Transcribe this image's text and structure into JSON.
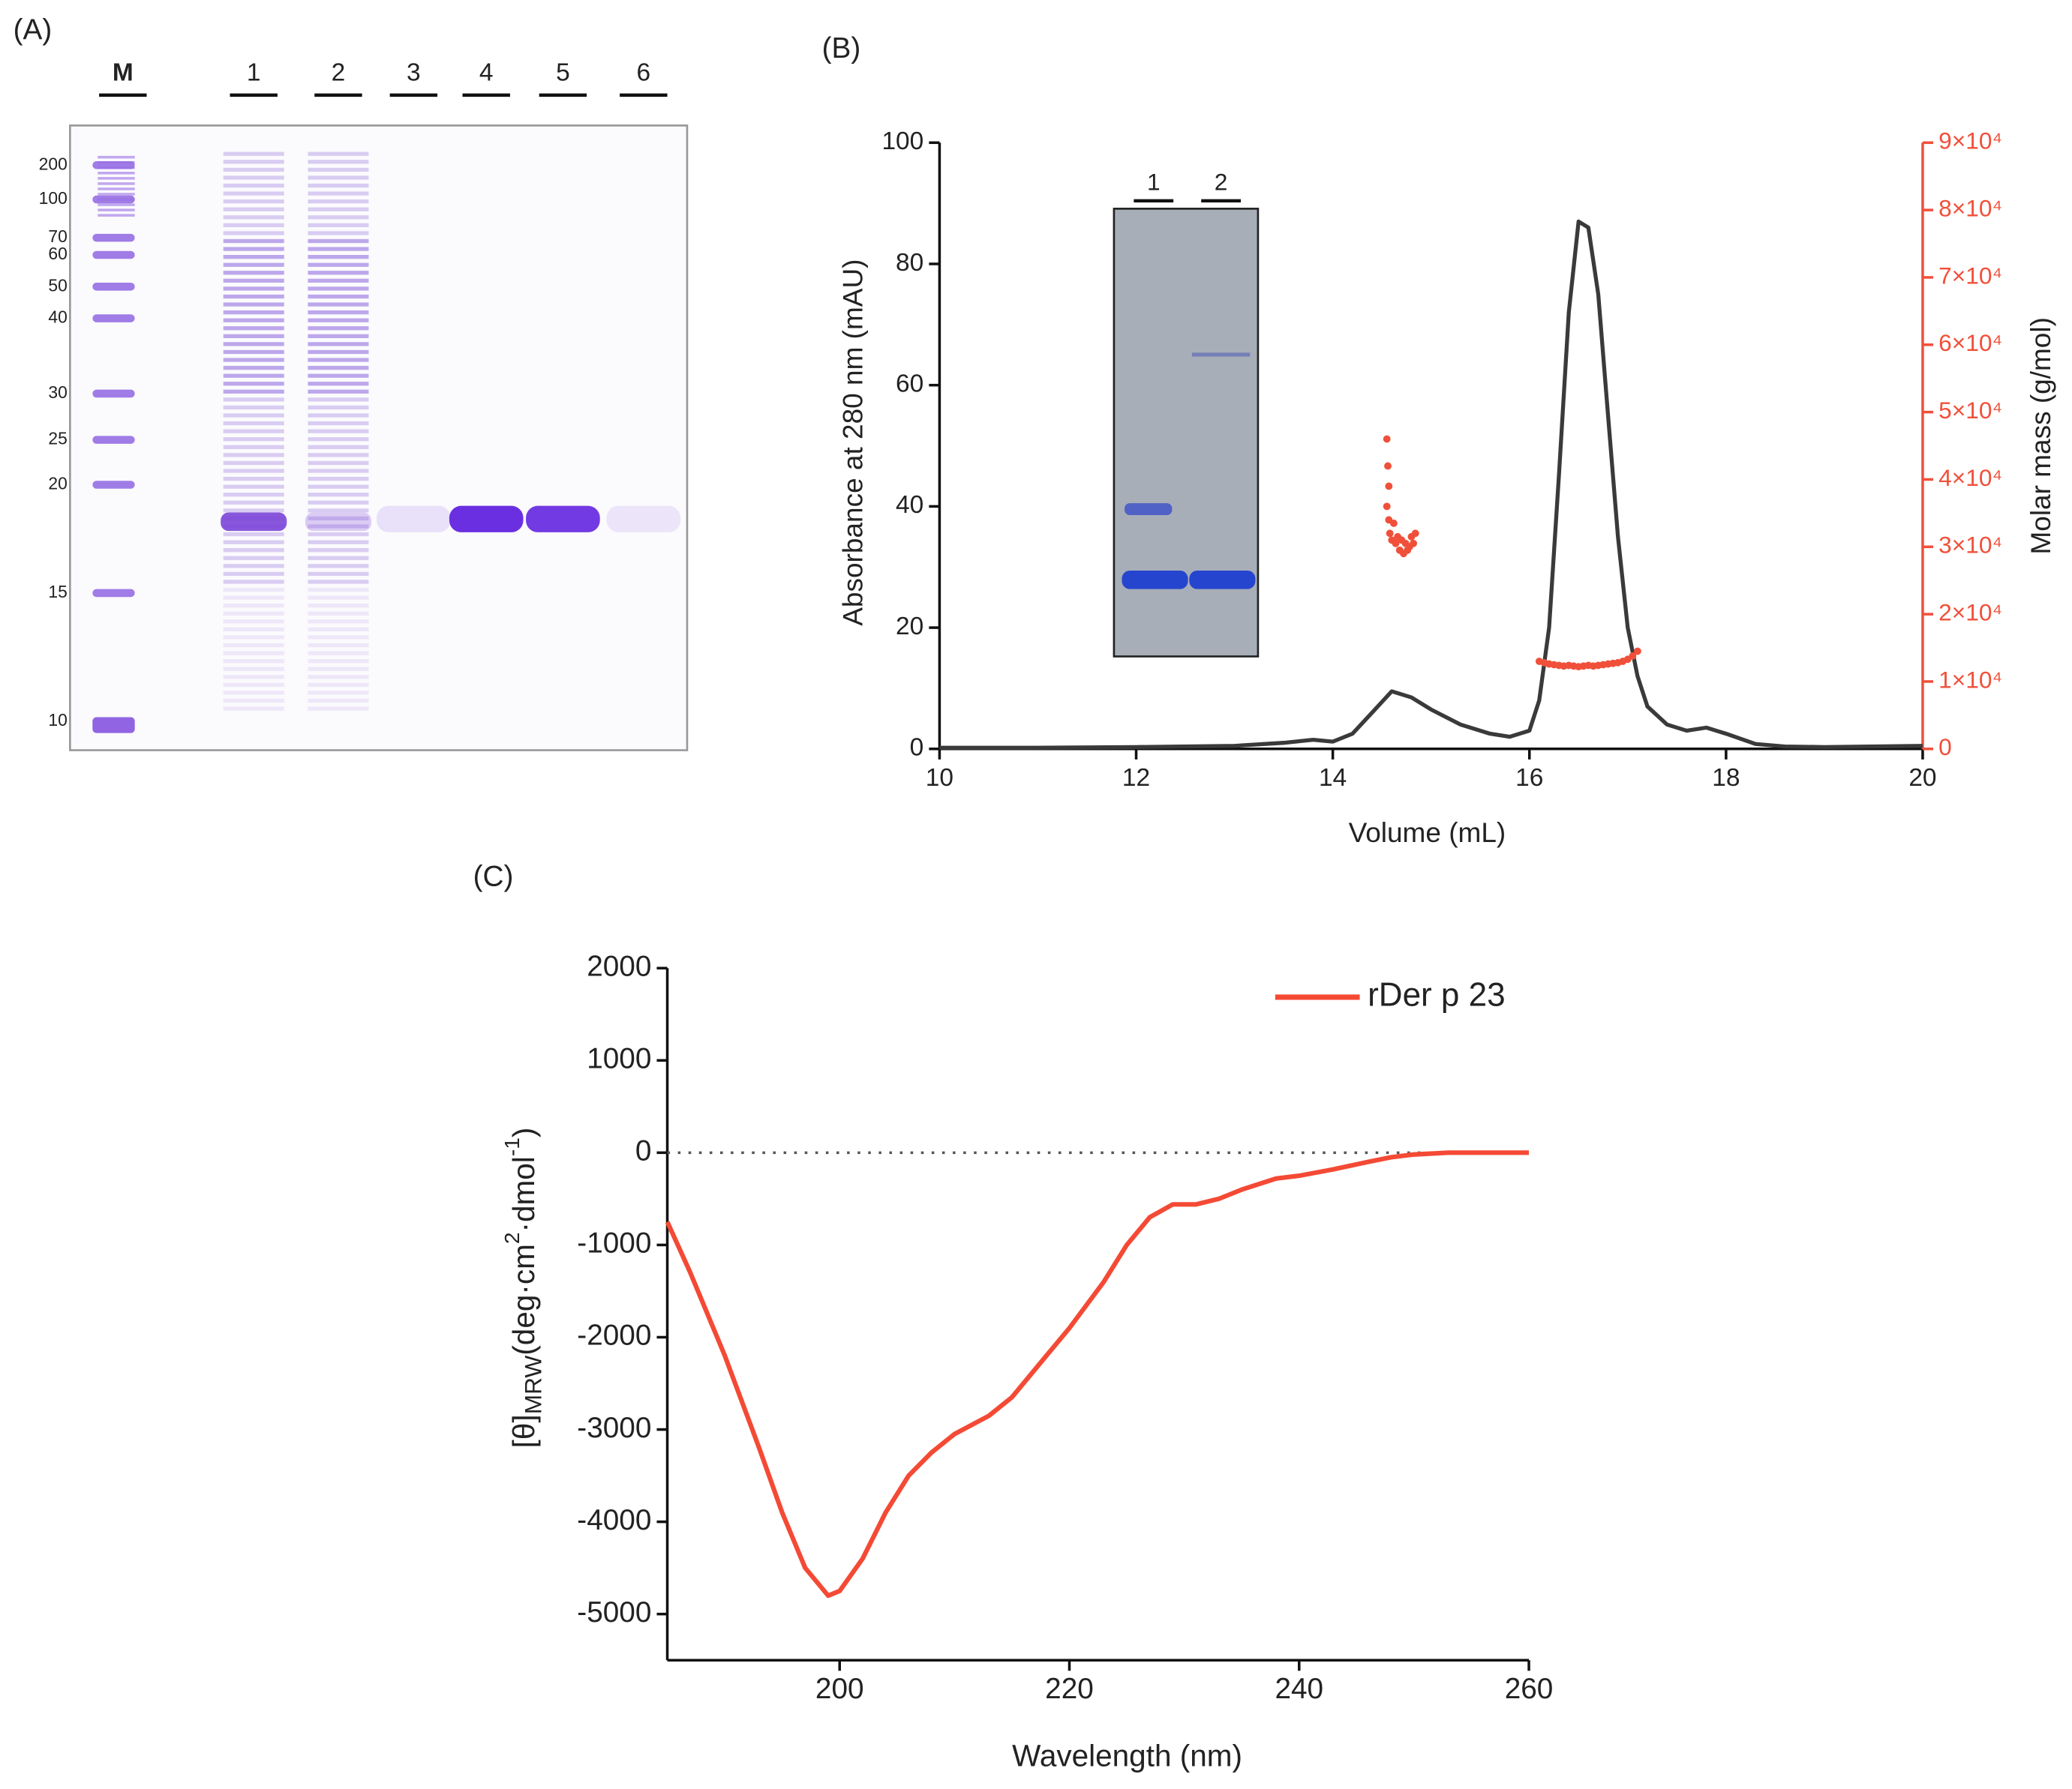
{
  "panel_a": {
    "label": "(A)",
    "lanes": [
      "M",
      "1",
      "2",
      "3",
      "4",
      "5",
      "6"
    ],
    "markers": [
      200,
      100,
      70,
      60,
      50,
      40,
      30,
      25,
      20,
      15,
      10
    ]
  },
  "panel_b_inset": {
    "lanes": [
      "1",
      "2"
    ]
  },
  "chart_data": [
    {
      "type": "line",
      "title": "(B)",
      "xlabel": "Volume (mL)",
      "ylabel": "Absorbance at 280 nm (mAU)",
      "y2label": "Molar mass (g/mol)",
      "y2color": "#f0503a",
      "xlim": [
        10,
        20
      ],
      "xticks": [
        10,
        12,
        14,
        16,
        18,
        20
      ],
      "ylim": [
        0,
        100
      ],
      "yticks": [
        0,
        20,
        40,
        60,
        80,
        100
      ],
      "y2lim": [
        0,
        90000
      ],
      "y2ticks": [
        0,
        {
          "value": 10000,
          "label": "1×10⁴"
        },
        {
          "value": 20000,
          "label": "2×10⁴"
        },
        {
          "value": 30000,
          "label": "3×10⁴"
        },
        {
          "value": 40000,
          "label": "4×10⁴"
        },
        {
          "value": 50000,
          "label": "5×10⁴"
        },
        {
          "value": 60000,
          "label": "6×10⁴"
        },
        {
          "value": 70000,
          "label": "7×10⁴"
        },
        {
          "value": 80000,
          "label": "8×10⁴"
        },
        {
          "value": 90000,
          "label": "9×10⁴"
        }
      ],
      "series": [
        {
          "color": "#3a3a3a",
          "x": [
            10,
            11,
            12,
            13,
            13.5,
            13.8,
            14.0,
            14.2,
            14.4,
            14.6,
            14.8,
            15.0,
            15.3,
            15.6,
            15.8,
            16.0,
            16.1,
            16.2,
            16.3,
            16.4,
            16.5,
            16.6,
            16.7,
            16.8,
            16.9,
            17.0,
            17.1,
            17.2,
            17.4,
            17.6,
            17.8,
            18.0,
            18.3,
            18.6,
            19,
            20
          ],
          "values": [
            0.2,
            0.2,
            0.3,
            0.5,
            1,
            1.5,
            1.2,
            2.5,
            6,
            9.5,
            8.5,
            6.5,
            4,
            2.5,
            2,
            3,
            8,
            20,
            45,
            72,
            87,
            86,
            75,
            55,
            35,
            20,
            12,
            7,
            4,
            3,
            3.5,
            2.5,
            0.8,
            0.4,
            0.3,
            0.5
          ]
        },
        {
          "type": "scatter",
          "axis": "y2",
          "color": "#f0503a",
          "x": [
            14.55,
            14.56,
            14.57,
            14.55,
            14.57,
            14.58,
            14.6,
            14.62,
            14.64,
            14.66,
            14.68,
            14.7,
            14.72,
            14.74,
            14.76,
            14.78,
            14.8,
            14.82,
            14.84,
            16.1,
            16.15,
            16.2,
            16.25,
            16.3,
            16.35,
            16.4,
            16.45,
            16.5,
            16.55,
            16.6,
            16.65,
            16.7,
            16.75,
            16.8,
            16.85,
            16.9,
            16.95,
            17.0,
            17.05,
            17.1
          ],
          "values": [
            46000,
            42000,
            39000,
            36000,
            34000,
            32000,
            31000,
            33500,
            30500,
            31500,
            29500,
            31000,
            29000,
            30500,
            29500,
            30000,
            31500,
            30500,
            32000,
            13000,
            12800,
            12600,
            12500,
            12400,
            12300,
            12400,
            12300,
            12200,
            12300,
            12400,
            12300,
            12400,
            12500,
            12600,
            12700,
            12800,
            13000,
            13300,
            13800,
            14500
          ]
        }
      ]
    },
    {
      "type": "line",
      "title": "(C)",
      "xlabel": "Wavelength (nm)",
      "ylabel": [
        "[θ]",
        "MRW",
        "(deg·cm",
        "2",
        "·dmol",
        "-1",
        ")"
      ],
      "xlim": [
        185,
        260
      ],
      "xticks": [
        200,
        220,
        240,
        260
      ],
      "ylim": [
        -5500,
        2000
      ],
      "yticks": [
        2000,
        1000,
        0,
        -1000,
        -2000,
        -3000,
        -4000,
        -5000
      ],
      "reference_line": 0,
      "legend": "upper right",
      "series": [
        {
          "name": "rDer p 23",
          "color": "#f44a35",
          "x": [
            185,
            187,
            190,
            193,
            195,
            197,
            199,
            200,
            202,
            204,
            206,
            208,
            210,
            213,
            215,
            218,
            220,
            223,
            225,
            227,
            229,
            231,
            233,
            235,
            238,
            240,
            243,
            246,
            248,
            250,
            253,
            256,
            260
          ],
          "values": [
            -750,
            -1300,
            -2200,
            -3200,
            -3900,
            -4500,
            -4800,
            -4750,
            -4400,
            -3900,
            -3500,
            -3250,
            -3050,
            -2850,
            -2650,
            -2200,
            -1900,
            -1400,
            -1000,
            -700,
            -560,
            -560,
            -500,
            -400,
            -280,
            -250,
            -180,
            -100,
            -50,
            -20,
            0,
            0,
            0
          ]
        }
      ]
    }
  ]
}
